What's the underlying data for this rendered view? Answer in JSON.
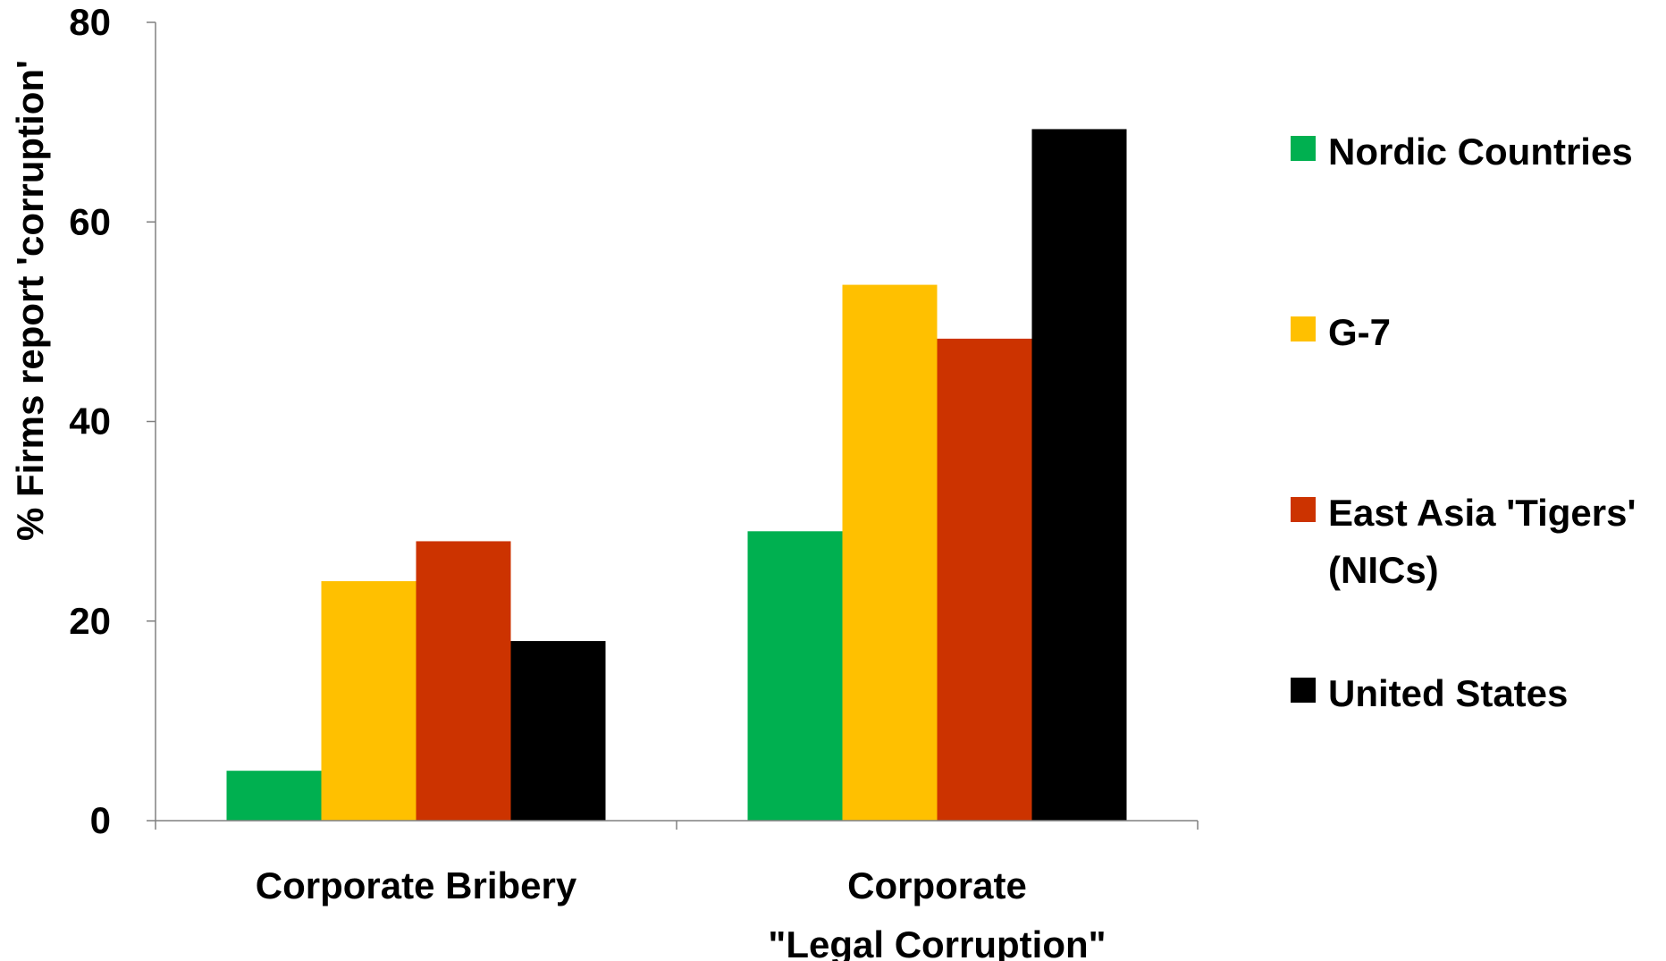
{
  "chart_data": {
    "type": "bar",
    "title": "",
    "xlabel": "",
    "ylabel": "% Firms report 'corruption'",
    "ylim": [
      0,
      80
    ],
    "yticks": [
      0,
      20,
      40,
      60,
      80
    ],
    "grid": false,
    "legend_position": "right",
    "categories": [
      {
        "lines": [
          "Corporate Bribery"
        ]
      },
      {
        "lines": [
          "Corporate",
          "\"Legal Corruption\""
        ]
      }
    ],
    "series": [
      {
        "name": "Nordic Countries",
        "name_lines": [
          "Nordic Countries"
        ],
        "color": "#00b050",
        "values": [
          5,
          29
        ]
      },
      {
        "name": "G-7",
        "name_lines": [
          "G-7"
        ],
        "color": "#ffc000",
        "values": [
          24,
          53.7
        ]
      },
      {
        "name": "East Asia 'Tigers' (NICs)",
        "name_lines": [
          "East Asia 'Tigers'",
          "(NICs)"
        ],
        "color": "#cc3300",
        "values": [
          28,
          48.3
        ]
      },
      {
        "name": "United States",
        "name_lines": [
          "United States"
        ],
        "color": "#000000",
        "values": [
          18,
          69.3
        ]
      }
    ]
  }
}
